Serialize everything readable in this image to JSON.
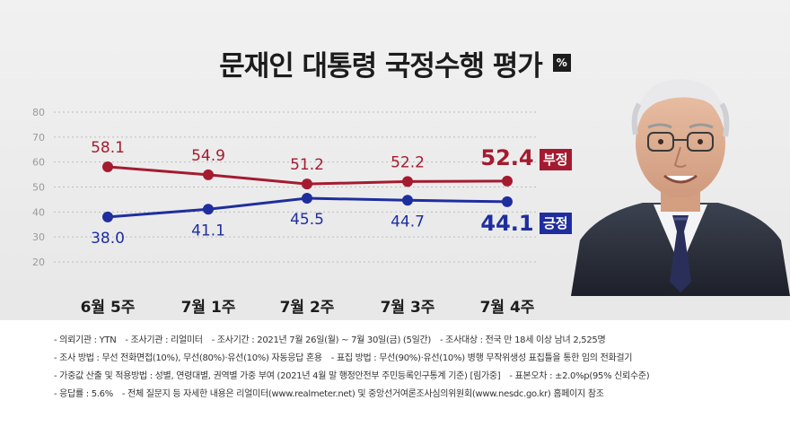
{
  "title": "문재인 대통령 국정수행 평가",
  "unit": "%",
  "badges": {
    "negative": "부정",
    "positive": "긍정"
  },
  "colors": {
    "negative": "#a41b30",
    "positive": "#1f2e9e",
    "grid": "#bdbdbd",
    "axis_text": "#9a9a9a"
  },
  "chart_data": {
    "type": "line",
    "title": "문재인 대통령 국정수행 평가",
    "categories": [
      "6월 5주",
      "7월 1주",
      "7월 2주",
      "7월 3주",
      "7월 4주"
    ],
    "series": [
      {
        "name": "부정",
        "values": [
          58.1,
          54.9,
          51.2,
          52.2,
          52.4
        ],
        "color": "#a41b30"
      },
      {
        "name": "긍정",
        "values": [
          38.0,
          41.1,
          45.5,
          44.7,
          44.1
        ],
        "color": "#1f2e9e"
      }
    ],
    "labels": {
      "부정": [
        "58.1",
        "54.9",
        "51.2",
        "52.2",
        "52.4"
      ],
      "긍정": [
        "38.0",
        "41.1",
        "45.5",
        "44.7",
        "44.1"
      ]
    },
    "yticks": [
      "80",
      "70",
      "60",
      "50",
      "40",
      "30",
      "20"
    ],
    "ylim": [
      15,
      80
    ],
    "grid": true,
    "legend": "right"
  },
  "footer": {
    "rows": [
      [
        "- 의뢰기관 : YTN",
        "- 조사기관 : 리얼미터",
        "- 조사기간 : 2021년 7월 26일(월) ~ 7월 30일(금) (5일간)",
        "- 조사대상 : 전국 만 18세 이상 남녀 2,525명"
      ],
      [
        "- 조사 방법 : 무선 전화면접(10%), 무선(80%)·유선(10%) 자동응답 혼용",
        "- 표집 방법 : 무선(90%)·유선(10%) 병행 무작위생성 표집틀을 통한 임의 전화걸기"
      ],
      [
        "- 가중값 산출 및 적용방법 : 성별, 연령대별, 권역별 가중 부여 (2021년 4월 말 행정안전부 주민등록인구통계 기준) [림가중]",
        "- 표본오차 : ±2.0%p(95% 신뢰수준)"
      ],
      [
        "- 응답률 : 5.6%",
        "- 전체 질문지 등 자세한 내용은 리얼미터(www.realmeter.net) 및 중앙선거여론조사심의위원회(www.nesdc.go.kr) 홈페이지 참조"
      ]
    ]
  }
}
